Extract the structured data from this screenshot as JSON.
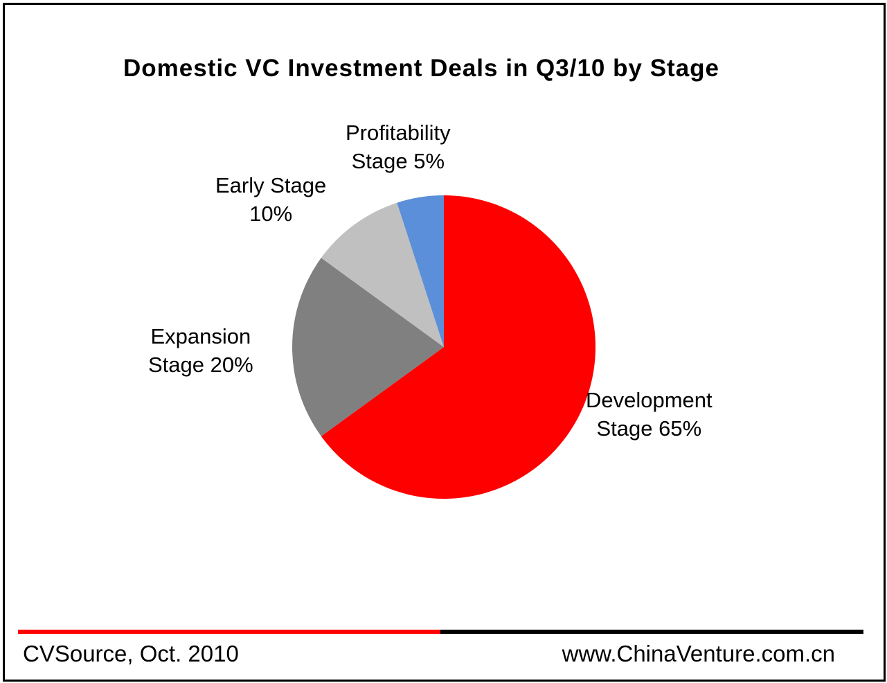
{
  "chart_data": {
    "type": "pie",
    "title": "Domestic VC Investment Deals in Q3/10 by Stage",
    "slices": [
      {
        "name": "Development Stage",
        "value": 65,
        "label_line1": "Development",
        "label_line2": "Stage 65%",
        "color": "#ff0000"
      },
      {
        "name": "Expansion Stage",
        "value": 20,
        "label_line1": "Expansion",
        "label_line2": "Stage 20%",
        "color": "#808080"
      },
      {
        "name": "Early Stage",
        "value": 10,
        "label_line1": "Early Stage",
        "label_line2": "10%",
        "color": "#c0c0c0"
      },
      {
        "name": "Profitability Stage",
        "value": 5,
        "label_line1": "Profitability",
        "label_line2": "Stage 5%",
        "color": "#5b8fd9"
      }
    ],
    "start_angle": "12 o'clock",
    "direction": "clockwise"
  },
  "footer": {
    "source": "CVSource, Oct. 2010",
    "url": "www.ChinaVenture.com.cn",
    "bar_colors": [
      "#ff0000",
      "#000000"
    ]
  }
}
